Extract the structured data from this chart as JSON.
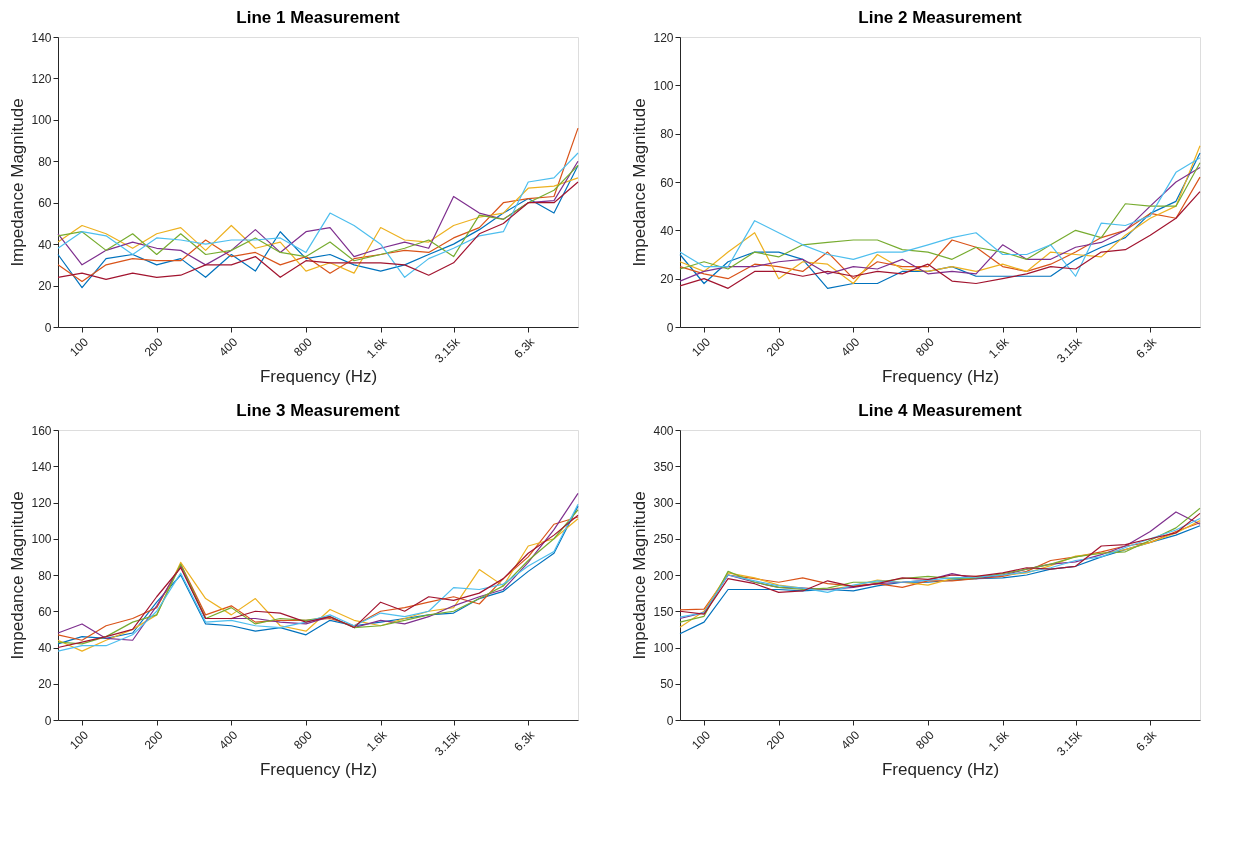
{
  "chart_data": [
    {
      "type": "line",
      "title": "Line 1 Measurement",
      "xlabel": "Frequency (Hz)",
      "ylabel": "Impedance Magnitude",
      "log": "x",
      "grid": false,
      "legend": false,
      "x": [
        80,
        100,
        125,
        160,
        200,
        250,
        315,
        400,
        500,
        630,
        800,
        1000,
        1250,
        1600,
        2000,
        2500,
        3150,
        4000,
        5000,
        6300,
        8000,
        10000
      ],
      "xlim": [
        80,
        10000
      ],
      "ylim": [
        0,
        140
      ],
      "xticks": [
        100,
        200,
        400,
        800,
        {
          "value": 1600,
          "label": "1.6k"
        },
        {
          "value": 3150,
          "label": "3.15k"
        },
        {
          "value": 6300,
          "label": "6.3k"
        }
      ],
      "yticks": [
        0,
        20,
        40,
        60,
        80,
        100,
        120,
        140
      ],
      "series": [
        {
          "color": "#0072bd",
          "values": [
            35,
            19,
            33,
            35,
            30,
            33,
            24,
            35,
            27,
            46,
            33,
            35,
            30,
            27,
            30,
            35,
            40,
            47,
            55,
            62,
            55,
            78
          ]
        },
        {
          "color": "#d95319",
          "values": [
            30,
            22,
            30,
            33,
            32,
            32,
            42,
            34,
            36,
            30,
            34,
            26,
            33,
            35,
            37,
            36,
            43,
            48,
            60,
            62,
            63,
            96
          ]
        },
        {
          "color": "#edb120",
          "values": [
            41,
            49,
            45,
            38,
            45,
            48,
            37,
            49,
            38,
            41,
            27,
            31,
            26,
            48,
            42,
            41,
            49,
            53,
            55,
            67,
            68,
            72
          ]
        },
        {
          "color": "#7e2f8e",
          "values": [
            45,
            30,
            37,
            41,
            38,
            37,
            30,
            37,
            47,
            36,
            46,
            48,
            34,
            38,
            41,
            38,
            63,
            55,
            52,
            60,
            61,
            80
          ]
        },
        {
          "color": "#77ac30",
          "values": [
            44,
            46,
            37,
            45,
            35,
            45,
            35,
            37,
            43,
            36,
            34,
            41,
            32,
            35,
            38,
            42,
            34,
            54,
            52,
            60,
            66,
            78
          ]
        },
        {
          "color": "#4dbeee",
          "values": [
            38,
            46,
            44,
            35,
            43,
            42,
            40,
            42,
            42,
            43,
            36,
            55,
            49,
            40,
            24,
            33,
            38,
            44,
            46,
            70,
            72,
            84
          ]
        },
        {
          "color": "#a2142f",
          "values": [
            24,
            26,
            23,
            26,
            24,
            25,
            30,
            30,
            34,
            24,
            32,
            31,
            31,
            31,
            30,
            25,
            31,
            45,
            50,
            60,
            60,
            70
          ]
        }
      ]
    },
    {
      "type": "line",
      "title": "Line 2 Measurement",
      "xlabel": "Frequency (Hz)",
      "ylabel": "Impedance Magnitude",
      "log": "x",
      "grid": false,
      "legend": false,
      "x": [
        80,
        100,
        125,
        160,
        200,
        250,
        315,
        400,
        500,
        630,
        800,
        1000,
        1250,
        1600,
        2000,
        2500,
        3150,
        4000,
        5000,
        6300,
        8000,
        10000
      ],
      "xlim": [
        80,
        10000
      ],
      "ylim": [
        0,
        120
      ],
      "xticks": [
        100,
        200,
        400,
        800,
        {
          "value": 1600,
          "label": "1.6k"
        },
        {
          "value": 3150,
          "label": "3.15k"
        },
        {
          "value": 6300,
          "label": "6.3k"
        }
      ],
      "yticks": [
        0,
        20,
        40,
        60,
        80,
        100,
        120
      ],
      "series": [
        {
          "color": "#0072bd",
          "values": [
            30,
            18,
            27,
            31,
            31,
            28,
            16,
            18,
            18,
            23,
            23,
            25,
            21,
            21,
            21,
            21,
            28,
            33,
            37,
            47,
            52,
            72
          ]
        },
        {
          "color": "#d95319",
          "values": [
            25,
            22,
            20,
            26,
            25,
            23,
            31,
            20,
            27,
            25,
            25,
            36,
            33,
            25,
            23,
            26,
            31,
            37,
            40,
            47,
            45,
            62
          ]
        },
        {
          "color": "#edb120",
          "values": [
            27,
            23,
            31,
            39,
            20,
            27,
            26,
            18,
            30,
            24,
            23,
            25,
            23,
            26,
            23,
            31,
            30,
            29,
            38,
            45,
            50,
            75
          ]
        },
        {
          "color": "#7e2f8e",
          "values": [
            19,
            23,
            25,
            25,
            27,
            28,
            22,
            25,
            24,
            28,
            22,
            23,
            22,
            34,
            28,
            28,
            33,
            35,
            40,
            50,
            60,
            66
          ]
        },
        {
          "color": "#77ac30",
          "values": [
            24,
            27,
            24,
            31,
            29,
            34,
            35,
            36,
            36,
            32,
            31,
            28,
            33,
            31,
            28,
            34,
            40,
            37,
            51,
            50,
            50,
            68
          ]
        },
        {
          "color": "#4dbeee",
          "values": [
            31,
            25,
            25,
            44,
            39,
            34,
            30,
            28,
            31,
            31,
            34,
            37,
            39,
            30,
            30,
            34,
            21,
            43,
            42,
            46,
            64,
            70
          ]
        },
        {
          "color": "#a2142f",
          "values": [
            17,
            20,
            16,
            23,
            23,
            21,
            23,
            21,
            23,
            22,
            26,
            19,
            18,
            20,
            22,
            25,
            24,
            31,
            32,
            38,
            45,
            56
          ]
        }
      ]
    },
    {
      "type": "line",
      "title": "Line 3 Measurement",
      "xlabel": "Frequency (Hz)",
      "ylabel": "Impedance Magnitude",
      "log": "x",
      "grid": false,
      "legend": false,
      "x": [
        80,
        100,
        125,
        160,
        200,
        250,
        315,
        400,
        500,
        630,
        800,
        1000,
        1250,
        1600,
        2000,
        2500,
        3150,
        4000,
        5000,
        6300,
        8000,
        10000
      ],
      "xlim": [
        80,
        10000
      ],
      "ylim": [
        0,
        160
      ],
      "xticks": [
        100,
        200,
        400,
        800,
        {
          "value": 1600,
          "label": "1.6k"
        },
        {
          "value": 3150,
          "label": "3.15k"
        },
        {
          "value": 6300,
          "label": "6.3k"
        }
      ],
      "yticks": [
        0,
        20,
        40,
        60,
        80,
        100,
        120,
        140,
        160
      ],
      "series": [
        {
          "color": "#0072bd",
          "values": [
            42,
            46,
            45,
            48,
            65,
            80,
            53,
            52,
            49,
            51,
            47,
            55,
            52,
            54,
            56,
            58,
            59,
            67,
            71,
            82,
            92,
            118
          ]
        },
        {
          "color": "#d95319",
          "values": [
            47,
            44,
            52,
            56,
            62,
            86,
            58,
            63,
            54,
            55,
            55,
            56,
            52,
            60,
            62,
            65,
            68,
            64,
            78,
            90,
            108,
            112
          ]
        },
        {
          "color": "#edb120",
          "values": [
            44,
            38,
            44,
            50,
            58,
            87,
            67,
            58,
            67,
            52,
            49,
            61,
            55,
            52,
            56,
            60,
            62,
            83,
            74,
            96,
            100,
            111
          ]
        },
        {
          "color": "#7e2f8e",
          "values": [
            48,
            53,
            45,
            44,
            63,
            85,
            56,
            56,
            56,
            54,
            53,
            57,
            51,
            55,
            53,
            57,
            63,
            68,
            72,
            87,
            105,
            125
          ]
        },
        {
          "color": "#77ac30",
          "values": [
            43,
            42,
            46,
            54,
            58,
            86,
            56,
            62,
            53,
            56,
            55,
            57,
            51,
            52,
            55,
            58,
            60,
            67,
            74,
            88,
            100,
            116
          ]
        },
        {
          "color": "#4dbeee",
          "values": [
            38,
            41,
            41,
            47,
            60,
            81,
            54,
            55,
            52,
            51,
            54,
            58,
            52,
            59,
            57,
            60,
            73,
            72,
            75,
            85,
            93,
            119
          ]
        },
        {
          "color": "#a2142f",
          "values": [
            40,
            43,
            46,
            50,
            68,
            84,
            56,
            56,
            60,
            59,
            54,
            57,
            51,
            65,
            60,
            68,
            66,
            70,
            78,
            92,
            102,
            113
          ]
        }
      ]
    },
    {
      "type": "line",
      "title": "Line 4 Measurement",
      "xlabel": "Frequency (Hz)",
      "ylabel": "Impedance Magnitude",
      "log": "x",
      "grid": false,
      "legend": false,
      "x": [
        80,
        100,
        125,
        160,
        200,
        250,
        315,
        400,
        500,
        630,
        800,
        1000,
        1250,
        1600,
        2000,
        2500,
        3150,
        4000,
        5000,
        6300,
        8000,
        10000
      ],
      "xlim": [
        80,
        10000
      ],
      "ylim": [
        0,
        400
      ],
      "xticks": [
        100,
        200,
        400,
        800,
        {
          "value": 1600,
          "label": "1.6k"
        },
        {
          "value": 3150,
          "label": "3.15k"
        },
        {
          "value": 6300,
          "label": "6.3k"
        }
      ],
      "yticks": [
        0,
        50,
        100,
        150,
        200,
        250,
        300,
        350,
        400
      ],
      "series": [
        {
          "color": "#0072bd",
          "values": [
            119,
            135,
            180,
            180,
            180,
            178,
            180,
            178,
            185,
            190,
            190,
            193,
            195,
            196,
            200,
            208,
            212,
            225,
            235,
            245,
            255,
            268
          ]
        },
        {
          "color": "#d95319",
          "values": [
            152,
            153,
            200,
            195,
            190,
            196,
            188,
            185,
            188,
            183,
            192,
            192,
            195,
            198,
            205,
            220,
            225,
            232,
            240,
            245,
            260,
            272
          ]
        },
        {
          "color": "#edb120",
          "values": [
            128,
            150,
            203,
            196,
            186,
            182,
            180,
            185,
            193,
            190,
            186,
            195,
            198,
            200,
            203,
            213,
            226,
            230,
            235,
            245,
            258,
            275
          ]
        },
        {
          "color": "#7e2f8e",
          "values": [
            140,
            148,
            200,
            190,
            183,
            182,
            180,
            183,
            188,
            190,
            193,
            202,
            195,
            200,
            208,
            215,
            218,
            228,
            240,
            260,
            287,
            270
          ]
        },
        {
          "color": "#77ac30",
          "values": [
            135,
            143,
            205,
            190,
            183,
            180,
            182,
            190,
            190,
            195,
            198,
            195,
            196,
            202,
            208,
            215,
            225,
            230,
            232,
            248,
            265,
            292
          ]
        },
        {
          "color": "#4dbeee",
          "values": [
            142,
            148,
            200,
            192,
            185,
            182,
            176,
            186,
            192,
            190,
            193,
            196,
            197,
            200,
            204,
            210,
            220,
            225,
            238,
            250,
            262,
            278
          ]
        },
        {
          "color": "#a2142f",
          "values": [
            150,
            146,
            195,
            188,
            176,
            178,
            192,
            184,
            188,
            196,
            194,
            200,
            198,
            203,
            210,
            208,
            212,
            240,
            242,
            250,
            258,
            285
          ]
        }
      ]
    }
  ]
}
